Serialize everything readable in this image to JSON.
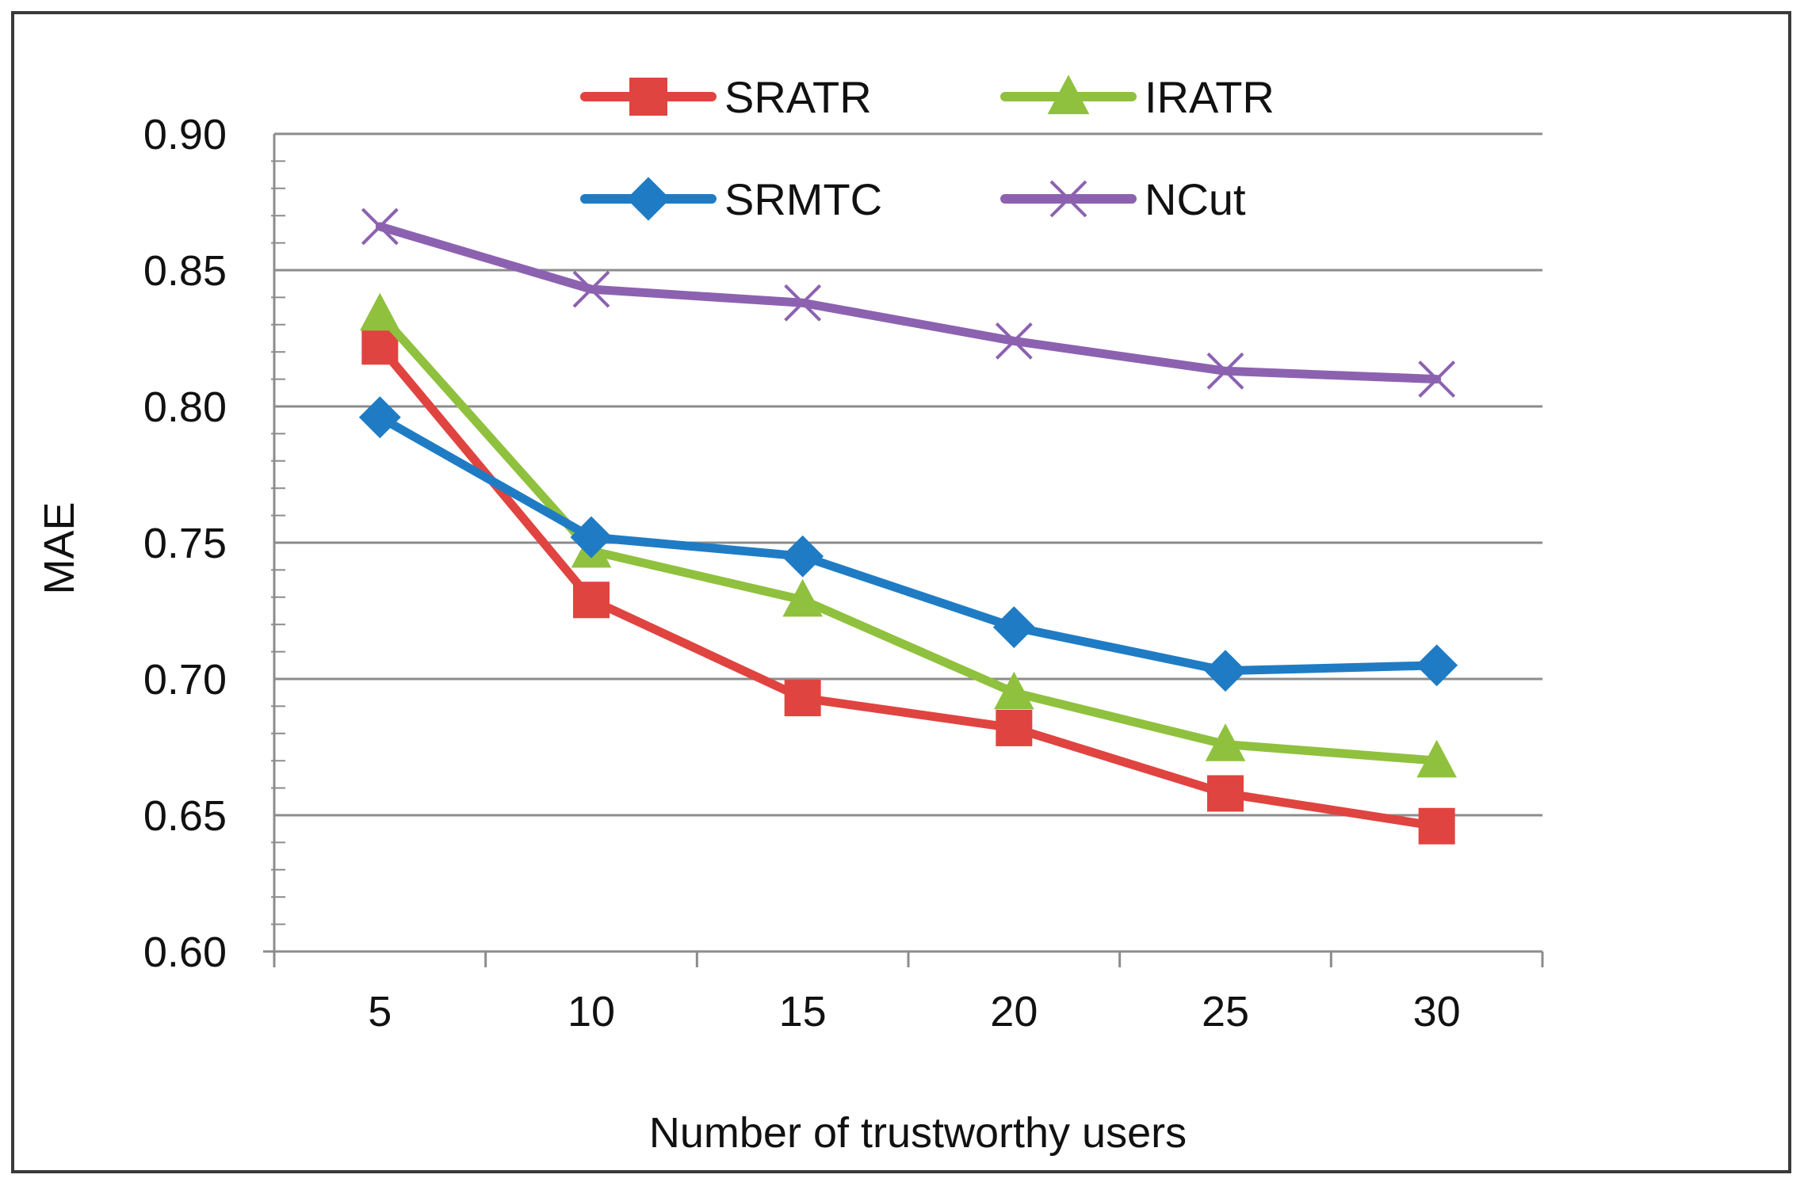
{
  "chart_data": {
    "type": "line",
    "title": "",
    "xlabel": "Number of trustworthy users",
    "ylabel": "MAE",
    "categories": [
      "5",
      "10",
      "15",
      "20",
      "25",
      "30"
    ],
    "ylim": [
      0.6,
      0.9
    ],
    "yticks": [
      "0.60",
      "0.65",
      "0.70",
      "0.75",
      "0.80",
      "0.85",
      "0.90"
    ],
    "grid": true,
    "legend_position": "top",
    "series": [
      {
        "name": "SRATR",
        "color": "#e04440",
        "marker": "square",
        "values": [
          0.822,
          0.729,
          0.693,
          0.682,
          0.658,
          0.646
        ]
      },
      {
        "name": "IRATR",
        "color": "#8fc13e",
        "marker": "triangle",
        "values": [
          0.834,
          0.747,
          0.729,
          0.695,
          0.676,
          0.67
        ]
      },
      {
        "name": "SRMTC",
        "color": "#1f7cc4",
        "marker": "diamond",
        "values": [
          0.796,
          0.752,
          0.745,
          0.719,
          0.703,
          0.705
        ]
      },
      {
        "name": "NCut",
        "color": "#8c62b0",
        "marker": "x",
        "values": [
          0.866,
          0.843,
          0.838,
          0.824,
          0.813,
          0.81
        ]
      }
    ]
  }
}
